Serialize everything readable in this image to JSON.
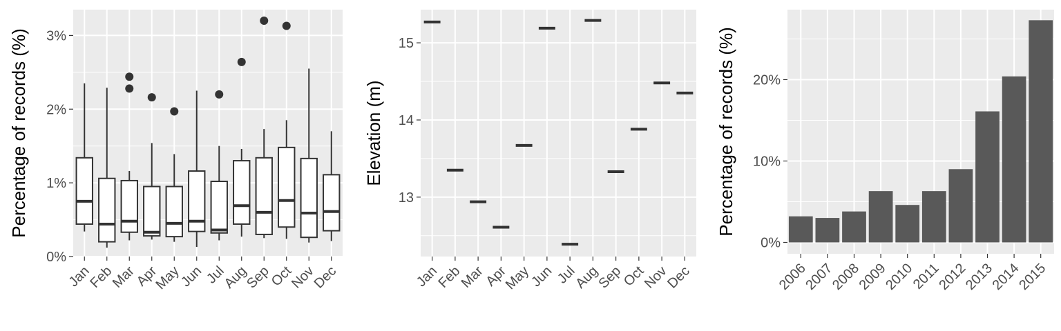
{
  "chart_data": [
    {
      "type": "box",
      "ylabel": "Percentage of records (%)",
      "xlabel": "",
      "ylim": [
        0,
        3.35
      ],
      "yticks": [
        0,
        1,
        2,
        3
      ],
      "ytick_labels": [
        "0%",
        "1%",
        "2%",
        "3%"
      ],
      "categories": [
        "Jan",
        "Feb",
        "Mar",
        "Apr",
        "May",
        "Jun",
        "Jul",
        "Aug",
        "Sep",
        "Oct",
        "Nov",
        "Dec"
      ],
      "boxes": [
        {
          "min": 0.34,
          "q1": 0.44,
          "median": 0.75,
          "q3": 1.34,
          "max": 2.35,
          "outliers": []
        },
        {
          "min": 0.12,
          "q1": 0.2,
          "median": 0.44,
          "q3": 1.06,
          "max": 2.29,
          "outliers": []
        },
        {
          "min": 0.22,
          "q1": 0.33,
          "median": 0.48,
          "q3": 1.03,
          "max": 1.16,
          "outliers": [
            2.44,
            2.28
          ]
        },
        {
          "min": 0.23,
          "q1": 0.28,
          "median": 0.33,
          "q3": 0.95,
          "max": 1.54,
          "outliers": [
            2.16
          ]
        },
        {
          "min": 0.2,
          "q1": 0.27,
          "median": 0.45,
          "q3": 0.95,
          "max": 1.39,
          "outliers": [
            1.97
          ]
        },
        {
          "min": 0.13,
          "q1": 0.34,
          "median": 0.48,
          "q3": 1.16,
          "max": 2.25,
          "outliers": []
        },
        {
          "min": 0.22,
          "q1": 0.32,
          "median": 0.36,
          "q3": 1.02,
          "max": 1.5,
          "outliers": [
            2.2
          ]
        },
        {
          "min": 0.27,
          "q1": 0.44,
          "median": 0.69,
          "q3": 1.3,
          "max": 1.46,
          "outliers": [
            2.64
          ]
        },
        {
          "min": 0.25,
          "q1": 0.3,
          "median": 0.6,
          "q3": 1.34,
          "max": 1.73,
          "outliers": [
            3.2
          ]
        },
        {
          "min": 0.24,
          "q1": 0.4,
          "median": 0.76,
          "q3": 1.48,
          "max": 1.85,
          "outliers": [
            3.13
          ]
        },
        {
          "min": 0.19,
          "q1": 0.26,
          "median": 0.59,
          "q3": 1.33,
          "max": 2.55,
          "outliers": []
        },
        {
          "min": 0.21,
          "q1": 0.35,
          "median": 0.61,
          "q3": 1.11,
          "max": 1.7,
          "outliers": []
        }
      ]
    },
    {
      "type": "box",
      "ylabel": "Elevation (m)",
      "xlabel": "",
      "ylim": [
        12.23,
        15.43
      ],
      "yticks": [
        13,
        14,
        15
      ],
      "ytick_labels": [
        "13",
        "14",
        "15"
      ],
      "categories": [
        "Jan",
        "Feb",
        "Mar",
        "Apr",
        "May",
        "Jun",
        "Jul",
        "Aug",
        "Sep",
        "Oct",
        "Nov",
        "Dec"
      ],
      "values": [
        15.27,
        13.35,
        12.94,
        12.61,
        13.67,
        15.19,
        12.39,
        15.29,
        13.33,
        13.88,
        14.48,
        14.35
      ]
    },
    {
      "type": "bar",
      "ylabel": "Percentage of records (%)",
      "xlabel": "",
      "ylim": [
        -1.4,
        28.6
      ],
      "yticks": [
        0,
        10,
        20
      ],
      "ytick_labels": [
        "0%",
        "10%",
        "20%"
      ],
      "categories": [
        "2006",
        "2007",
        "2008",
        "2009",
        "2010",
        "2011",
        "2012",
        "2013",
        "2014",
        "2015"
      ],
      "values": [
        3.2,
        3.0,
        3.8,
        6.3,
        4.6,
        6.3,
        9.0,
        16.1,
        20.4,
        27.3
      ]
    }
  ],
  "colors": {
    "panel": "#ebebeb",
    "grid": "#ffffff",
    "bar_fill": "#595959",
    "box_stroke": "#333333",
    "tick_text": "#4d4d4d",
    "axis_title": "#000000"
  }
}
